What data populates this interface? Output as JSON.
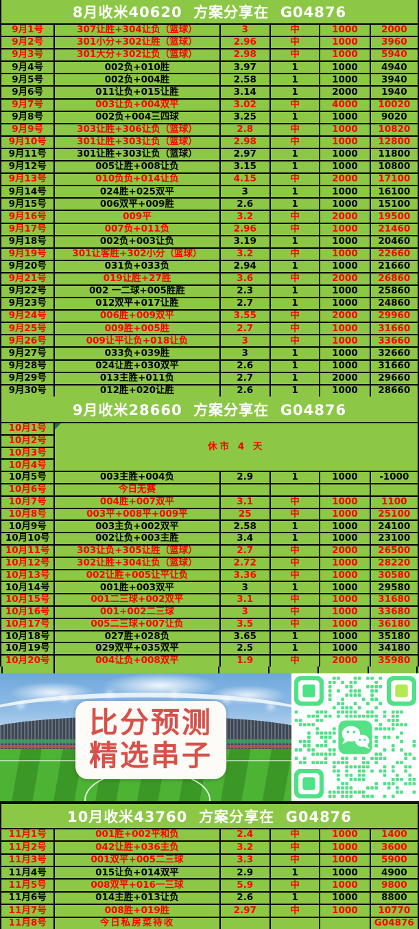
{
  "colors": {
    "background_green": "#8CC845",
    "hit_red": "#FE0000",
    "miss_black": "#000000",
    "band_text": "#FFFFFF",
    "qr_green": "#4FE186",
    "qr_finder_alt": "#B4E952",
    "wechat_logo_green": "#55E287",
    "banner_text_red": "#D8504A"
  },
  "bands": {
    "august": "8月收米40620  方案分享在  G04876",
    "september": "9月收米28660  方案分享在  G04876",
    "october": "10月收米43760  方案分享在  G04876"
  },
  "september_rows": [
    {
      "date": "9月1号",
      "scheme": "307让胜+304让负（篮球）",
      "odds": "3",
      "result": "中",
      "stake": "1000",
      "profit": "2000",
      "hit": true
    },
    {
      "date": "9月2号",
      "scheme": "301小分+302让胜（篮球）",
      "odds": "2.96",
      "result": "中",
      "stake": "1000",
      "profit": "3960",
      "hit": true
    },
    {
      "date": "9月3号",
      "scheme": "301大分+302让负（篮球）",
      "odds": "2.98",
      "result": "中",
      "stake": "1000",
      "profit": "5940",
      "hit": true
    },
    {
      "date": "9月4号",
      "scheme": "002负+010胜",
      "odds": "3.97",
      "result": "1",
      "stake": "1000",
      "profit": "4940",
      "hit": false
    },
    {
      "date": "9月5号",
      "scheme": "002负+004胜",
      "odds": "2.58",
      "result": "1",
      "stake": "1000",
      "profit": "3940",
      "hit": false
    },
    {
      "date": "9月6号",
      "scheme": "011让负+015让胜",
      "odds": "3.14",
      "result": "1",
      "stake": "2000",
      "profit": "1940",
      "hit": false
    },
    {
      "date": "9月7号",
      "scheme": "003让负+004双平",
      "odds": "3.02",
      "result": "中",
      "stake": "4000",
      "profit": "10020",
      "hit": true
    },
    {
      "date": "9月8号",
      "scheme": "002负+004三四球",
      "odds": "3.25",
      "result": "1",
      "stake": "1000",
      "profit": "9020",
      "hit": false
    },
    {
      "date": "9月9号",
      "scheme": "303让胜+306让负（篮球）",
      "odds": "2.8",
      "result": "中",
      "stake": "1000",
      "profit": "10820",
      "hit": true
    },
    {
      "date": "9月10号",
      "scheme": "301让胜+303让负（篮球）",
      "odds": "2.98",
      "result": "中",
      "stake": "1000",
      "profit": "12800",
      "hit": true
    },
    {
      "date": "9月11号",
      "scheme": "301让胜+303让负（篮球）",
      "odds": "2.97",
      "result": "1",
      "stake": "1000",
      "profit": "11800",
      "hit": false
    },
    {
      "date": "9月12号",
      "scheme": "005让胜+008让负",
      "odds": "3.15",
      "result": "1",
      "stake": "1000",
      "profit": "10800",
      "hit": false
    },
    {
      "date": "9月13号",
      "scheme": "010负负+014让负",
      "odds": "4.15",
      "result": "中",
      "stake": "2000",
      "profit": "17100",
      "hit": true
    },
    {
      "date": "9月14号",
      "scheme": "024胜+025双平",
      "odds": "3",
      "result": "1",
      "stake": "1000",
      "profit": "16100",
      "hit": false
    },
    {
      "date": "9月15号",
      "scheme": "006双平+009胜",
      "odds": "2.6",
      "result": "1",
      "stake": "1000",
      "profit": "15100",
      "hit": false
    },
    {
      "date": "9月16号",
      "scheme": "009平",
      "odds": "3.2",
      "result": "中",
      "stake": "2000",
      "profit": "19500",
      "hit": true
    },
    {
      "date": "9月17号",
      "scheme": "007负+011负",
      "odds": "2.96",
      "result": "中",
      "stake": "1000",
      "profit": "21460",
      "hit": true
    },
    {
      "date": "9月18号",
      "scheme": "002负+003让负",
      "odds": "3.19",
      "result": "1",
      "stake": "1000",
      "profit": "20460",
      "hit": false
    },
    {
      "date": "9月19号",
      "scheme": "301让客胜+302小分（篮球）",
      "odds": "3.2",
      "result": "中",
      "stake": "1000",
      "profit": "22660",
      "hit": true
    },
    {
      "date": "9月20号",
      "scheme": "031负+033负",
      "odds": "2.94",
      "result": "1",
      "stake": "1000",
      "profit": "21660",
      "hit": false
    },
    {
      "date": "9月21号",
      "scheme": "019让胜+27胜",
      "odds": "3.6",
      "result": "中",
      "stake": "2000",
      "profit": "26860",
      "hit": true
    },
    {
      "date": "9月22号",
      "scheme": "002 一二球+005胜胜",
      "odds": "2.3",
      "result": "1",
      "stake": "1000",
      "profit": "25860",
      "hit": false
    },
    {
      "date": "9月23号",
      "scheme": "012双平+017让胜",
      "odds": "2.7",
      "result": "1",
      "stake": "1000",
      "profit": "24860",
      "hit": false
    },
    {
      "date": "9月24号",
      "scheme": "006胜+009双平",
      "odds": "3.55",
      "result": "中",
      "stake": "2000",
      "profit": "29960",
      "hit": true
    },
    {
      "date": "9月25号",
      "scheme": "009胜+005胜",
      "odds": "2.7",
      "result": "中",
      "stake": "1000",
      "profit": "31660",
      "hit": true
    },
    {
      "date": "9月26号",
      "scheme": "009让平让负+018让负",
      "odds": "3",
      "result": "中",
      "stake": "1000",
      "profit": "33660",
      "hit": true
    },
    {
      "date": "9月27号",
      "scheme": "033负+039胜",
      "odds": "3",
      "result": "1",
      "stake": "1000",
      "profit": "32660",
      "hit": false
    },
    {
      "date": "9月28号",
      "scheme": "024让胜+030双平",
      "odds": "2.6",
      "result": "1",
      "stake": "1000",
      "profit": "31660",
      "hit": false
    },
    {
      "date": "9月29号",
      "scheme": "013主胜+011负",
      "odds": "2.7",
      "result": "1",
      "stake": "2000",
      "profit": "29660",
      "hit": false
    },
    {
      "date": "9月30号",
      "scheme": "012胜+020让胜",
      "odds": "2.6",
      "result": "1",
      "stake": "1000",
      "profit": "28660",
      "hit": false
    }
  ],
  "october": {
    "closed_dates": [
      "10月1号",
      "10月2号",
      "10月3号",
      "10月4号"
    ],
    "closed_label": "休市 4 天",
    "rows": [
      {
        "date": "10月5号",
        "scheme": "003主胜+004负",
        "odds": "2.9",
        "result": "1",
        "stake": "1000",
        "profit": "-1000",
        "hit": false
      },
      {
        "date": "10月6号",
        "scheme": "今日无赛",
        "odds": "",
        "result": "",
        "stake": "",
        "profit": "",
        "hit": true
      },
      {
        "date": "10月7号",
        "scheme": "004胜+007双平",
        "odds": "3.1",
        "result": "中",
        "stake": "1000",
        "profit": "1100",
        "hit": true
      },
      {
        "date": "10月8号",
        "scheme": "003平+008平+009平",
        "odds": "25",
        "result": "中",
        "stake": "1000",
        "profit": "25100",
        "hit": true
      },
      {
        "date": "10月9号",
        "scheme": "003主负+002双平",
        "odds": "2.58",
        "result": "1",
        "stake": "1000",
        "profit": "24100",
        "hit": false
      },
      {
        "date": "10月10号",
        "scheme": "002让负+003主胜",
        "odds": "3.4",
        "result": "1",
        "stake": "1000",
        "profit": "23100",
        "hit": false
      },
      {
        "date": "10月11号",
        "scheme": "303让负+305让胜（篮球）",
        "odds": "2.7",
        "result": "中",
        "stake": "2000",
        "profit": "26500",
        "hit": true
      },
      {
        "date": "10月12号",
        "scheme": "302让胜+304让负（篮球）",
        "odds": "2.72",
        "result": "中",
        "stake": "1000",
        "profit": "28220",
        "hit": true
      },
      {
        "date": "10月13号",
        "scheme": "002让胜+005让平让负",
        "odds": "3.36",
        "result": "中",
        "stake": "1000",
        "profit": "30580",
        "hit": true
      },
      {
        "date": "10月14号",
        "scheme": "001胜+003双平",
        "odds": "3",
        "result": "1",
        "stake": "1000",
        "profit": "29580",
        "hit": false
      },
      {
        "date": "10月15号",
        "scheme": "001二三球+002双平",
        "odds": "3.1",
        "result": "中",
        "stake": "1000",
        "profit": "31680",
        "hit": true
      },
      {
        "date": "10月16号",
        "scheme": "001+002二三球",
        "odds": "3",
        "result": "中",
        "stake": "1000",
        "profit": "33680",
        "hit": true
      },
      {
        "date": "10月17号",
        "scheme": "005二三球+007让负",
        "odds": "3.5",
        "result": "中",
        "stake": "1000",
        "profit": "36180",
        "hit": true
      },
      {
        "date": "10月18号",
        "scheme": "027胜+028负",
        "odds": "3.65",
        "result": "1",
        "stake": "1000",
        "profit": "35180",
        "hit": false
      },
      {
        "date": "10月19号",
        "scheme": "029双平+035双平",
        "odds": "2.5",
        "result": "1",
        "stake": "1000",
        "profit": "34180",
        "hit": false
      },
      {
        "date": "10月20号",
        "scheme": "004让负+008双平",
        "odds": "1.9",
        "result": "中",
        "stake": "2000",
        "profit": "35980",
        "hit": true
      }
    ]
  },
  "november_rows": [
    {
      "date": "11月1号",
      "scheme": "001胜+002平和负",
      "odds": "2.4",
      "result": "中",
      "stake": "1000",
      "profit": "1400",
      "hit": true
    },
    {
      "date": "11月2号",
      "scheme": "042让胜+036主负",
      "odds": "3.2",
      "result": "中",
      "stake": "1000",
      "profit": "3600",
      "hit": true
    },
    {
      "date": "11月3号",
      "scheme": "001双平+005二三球",
      "odds": "3.3",
      "result": "中",
      "stake": "1000",
      "profit": "5900",
      "hit": true
    },
    {
      "date": "11月4号",
      "scheme": "015让负+014双平",
      "odds": "2.9",
      "result": "1",
      "stake": "1000",
      "profit": "4900",
      "hit": false
    },
    {
      "date": "11月5号",
      "scheme": "008双平+016一三球",
      "odds": "5.9",
      "result": "中",
      "stake": "1000",
      "profit": "9800",
      "hit": true
    },
    {
      "date": "11月6号",
      "scheme": "014主胜+013让负",
      "odds": "2.6",
      "result": "1",
      "stake": "1000",
      "profit": "8800",
      "hit": false
    },
    {
      "date": "11月7号",
      "scheme": "008胜+019胜",
      "odds": "2.97",
      "result": "中",
      "stake": "1000",
      "profit": "10770",
      "hit": true
    },
    {
      "date": "11月8号",
      "scheme": "今日私房菜待收",
      "odds": "",
      "result": "",
      "stake": "",
      "profit": "G04876",
      "hit": true,
      "big": true
    }
  ],
  "photo": {
    "banner_line1": "比分预测",
    "banner_line2": "精选串子",
    "qr_label": "wechat-qr-code"
  }
}
